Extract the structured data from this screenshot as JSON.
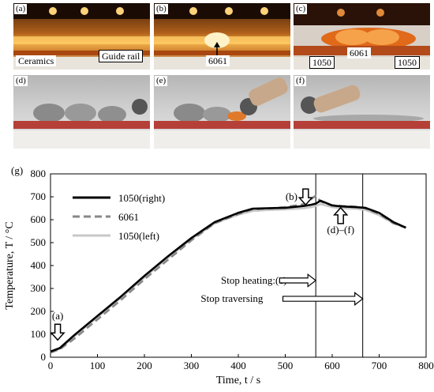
{
  "photos": {
    "a": {
      "label": "(a)",
      "annotations": [
        "Ceramics",
        "Guide rail"
      ]
    },
    "b": {
      "label": "(b)",
      "annotations": [
        "6061"
      ]
    },
    "c": {
      "label": "(c)",
      "annotations": [
        "1050",
        "6061",
        "1050"
      ]
    },
    "d": {
      "label": "(d)"
    },
    "e": {
      "label": "(e)"
    },
    "f": {
      "label": "(f)"
    }
  },
  "chart_data": {
    "type": "line",
    "panel_label": "(g)",
    "xlabel": "Time, t / s",
    "ylabel": "Temperature, T / °C",
    "xlim": [
      0,
      800
    ],
    "ylim": [
      0,
      800
    ],
    "xticks": [
      0,
      100,
      200,
      300,
      400,
      500,
      600,
      700,
      800
    ],
    "yticks": [
      0,
      100,
      200,
      300,
      400,
      500,
      600,
      700,
      800
    ],
    "legend_position": "top-left",
    "series": [
      {
        "name": "1050(right)",
        "color": "#000000",
        "dash": "solid",
        "x": [
          0,
          20,
          50,
          100,
          150,
          200,
          250,
          300,
          350,
          400,
          430,
          460,
          500,
          540,
          555,
          565,
          575,
          585,
          600,
          620,
          650,
          670,
          700,
          730,
          757
        ],
        "y": [
          25,
          40,
          95,
          180,
          265,
          355,
          440,
          520,
          590,
          630,
          648,
          650,
          652,
          660,
          665,
          670,
          683,
          675,
          662,
          658,
          655,
          652,
          630,
          590,
          565
        ]
      },
      {
        "name": "6061",
        "color": "#888888",
        "dash": "dashed",
        "x": [
          0,
          20,
          50,
          100,
          150,
          200,
          250,
          300,
          350,
          400,
          430,
          460,
          500,
          540,
          555,
          565,
          575,
          585,
          600,
          620,
          650,
          670,
          700,
          730,
          757
        ],
        "y": [
          20,
          35,
          80,
          165,
          250,
          340,
          425,
          510,
          585,
          625,
          645,
          648,
          655,
          668,
          690,
          705,
          680,
          672,
          663,
          660,
          657,
          650,
          625,
          585,
          565
        ]
      },
      {
        "name": "1050(left)",
        "color": "#c8c8c8",
        "dash": "solid",
        "x": [
          0,
          20,
          50,
          100,
          150,
          200,
          250,
          300,
          350,
          400,
          430,
          460,
          500,
          540,
          555,
          565,
          575,
          585,
          600,
          620,
          650,
          670,
          700,
          730,
          757
        ],
        "y": [
          22,
          38,
          90,
          175,
          260,
          348,
          433,
          515,
          585,
          622,
          638,
          642,
          645,
          650,
          655,
          660,
          668,
          663,
          655,
          650,
          648,
          643,
          620,
          585,
          565
        ]
      }
    ],
    "vertical_lines": [
      565,
      665
    ],
    "annotations": [
      {
        "text": "(a)",
        "x": 22,
        "y": 110
      },
      {
        "text": "(b)",
        "x": 520,
        "y": 700
      },
      {
        "text": "(d)–(f)",
        "x": 618,
        "y": 590
      },
      {
        "text": "Stop heating:(c)",
        "x": 555,
        "y": 335
      },
      {
        "text": "Stop traversing",
        "x": 655,
        "y": 250
      }
    ]
  }
}
